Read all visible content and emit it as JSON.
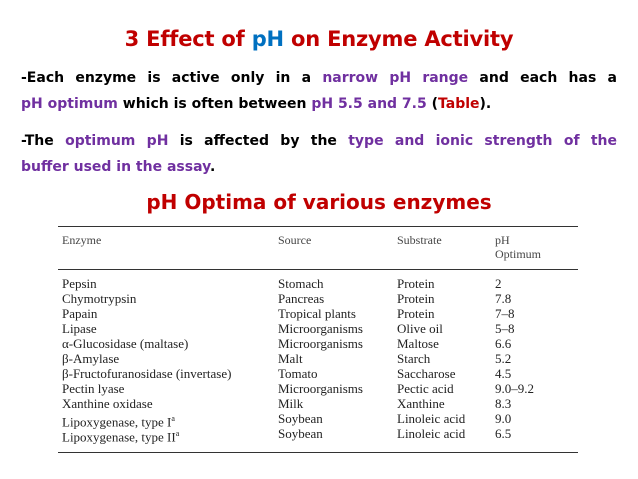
{
  "title": {
    "part1": "3 Effect of ",
    "part2": "pH",
    "part3": " on Enzyme Activity"
  },
  "para1": {
    "l1_a": "-Each enzyme is active only in a ",
    "l1_b": "narrow pH range",
    "l1_c": " and each has a",
    "l2_a": "pH optimum",
    "l2_b": " which is often between ",
    "l2_c": "pH 5.5 and 7.5",
    "l2_d": " (",
    "l2_e": "Table",
    "l2_f": ")."
  },
  "para2": {
    "l1_a": "-The ",
    "l1_b": "optimum pH",
    "l1_c": " is affected by the ",
    "l1_d": "type and ionic strength of the",
    "l2_a": "buffer used in the assay",
    "l2_b": "."
  },
  "subtitle": "pH Optima of various enzymes",
  "table": {
    "headers": {
      "enzyme": "Enzyme",
      "source": "Source",
      "substrate": "Substrate",
      "ph_line1": "pH",
      "ph_line2": "Optimum"
    },
    "rows": [
      {
        "enzyme": "Pepsin",
        "source": "Stomach",
        "substrate": "Protein",
        "ph": "2"
      },
      {
        "enzyme": "Chymotrypsin",
        "source": "Pancreas",
        "substrate": "Protein",
        "ph": "7.8"
      },
      {
        "enzyme": "Papain",
        "source": "Tropical plants",
        "substrate": "Protein",
        "ph": "7–8"
      },
      {
        "enzyme": "Lipase",
        "source": "Microorganisms",
        "substrate": "Olive oil",
        "ph": "5–8"
      },
      {
        "enzyme": "α-Glucosidase (maltase)",
        "source": "Microorganisms",
        "substrate": "Maltose",
        "ph": "6.6"
      },
      {
        "enzyme": "β-Amylase",
        "source": "Malt",
        "substrate": "Starch",
        "ph": "5.2"
      },
      {
        "enzyme": "β-Fructofuranosidase (invertase)",
        "source": "Tomato",
        "substrate": "Saccharose",
        "ph": "4.5"
      },
      {
        "enzyme": "Pectin lyase",
        "source": "Microorganisms",
        "substrate": "Pectic acid",
        "ph": "9.0–9.2"
      },
      {
        "enzyme": "Xanthine oxidase",
        "source": "Milk",
        "substrate": "Xanthine",
        "ph": "8.3"
      },
      {
        "enzyme": "Lipoxygenase, type I",
        "sup": "a",
        "source": "Soybean",
        "substrate": "Linoleic acid",
        "ph": "9.0"
      },
      {
        "enzyme": "Lipoxygenase, type II",
        "sup": "a",
        "source": "Soybean",
        "substrate": "Linoleic acid",
        "ph": "6.5"
      }
    ]
  }
}
